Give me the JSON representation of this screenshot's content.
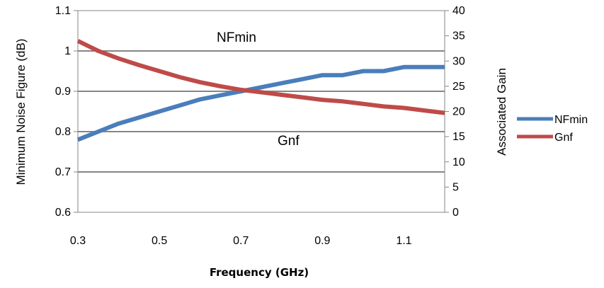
{
  "chart_data": {
    "type": "line",
    "xlabel": "Frequency (GHz)",
    "ylabel": "Minimum Noise Figure (dB)",
    "y2label": "Associated Gain",
    "xlim": [
      0.3,
      1.2
    ],
    "ylim": [
      0.6,
      1.1
    ],
    "y2lim": [
      0,
      40
    ],
    "x_ticks": [
      "0.3",
      "0.5",
      "0.7",
      "0.9",
      "1.1"
    ],
    "y_ticks": [
      "0.6",
      "0.7",
      "0.8",
      "0.9",
      "1",
      "1.1"
    ],
    "y2_ticks": [
      "0",
      "5",
      "10",
      "15",
      "20",
      "25",
      "30",
      "35",
      "40"
    ],
    "grid": true,
    "legend_position": "right",
    "series": [
      {
        "name": "NFmin",
        "axis": "left",
        "color": "#4A7EBB",
        "x": [
          0.3,
          0.35,
          0.4,
          0.45,
          0.5,
          0.55,
          0.6,
          0.65,
          0.7,
          0.75,
          0.8,
          0.85,
          0.9,
          0.95,
          1.0,
          1.05,
          1.1,
          1.15,
          1.2
        ],
        "y": [
          0.78,
          0.8,
          0.82,
          0.835,
          0.85,
          0.865,
          0.88,
          0.89,
          0.9,
          0.91,
          0.92,
          0.93,
          0.94,
          0.94,
          0.95,
          0.95,
          0.96,
          0.96,
          0.96
        ]
      },
      {
        "name": "Gnf",
        "axis": "right",
        "color": "#BE4B48",
        "x": [
          0.3,
          0.35,
          0.4,
          0.45,
          0.5,
          0.55,
          0.6,
          0.65,
          0.7,
          0.75,
          0.8,
          0.85,
          0.9,
          0.95,
          1.0,
          1.05,
          1.1,
          1.15,
          1.2
        ],
        "y": [
          34,
          32,
          30.5,
          29.2,
          28,
          26.8,
          25.8,
          25,
          24.3,
          23.8,
          23.3,
          22.8,
          22.3,
          22,
          21.5,
          21,
          20.7,
          20.2,
          19.7
        ]
      }
    ],
    "annotations": [
      "NFmin",
      "Gnf"
    ]
  }
}
